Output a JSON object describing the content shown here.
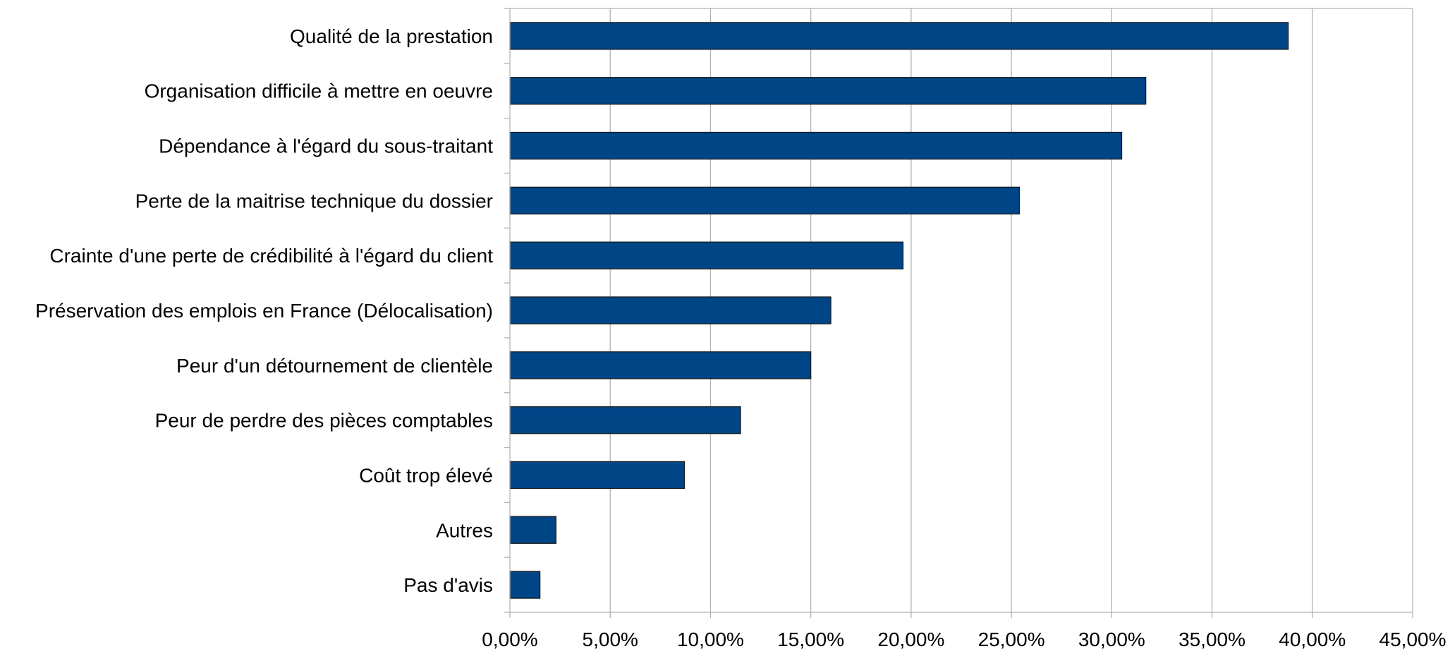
{
  "chart_data": {
    "type": "bar",
    "orientation": "horizontal",
    "title": "",
    "xlabel": "",
    "ylabel": "",
    "categories": [
      "Qualité de la prestation",
      "Organisation difficile à mettre en oeuvre",
      "Dépendance à l'égard du sous-traitant",
      "Perte de la maitrise technique du dossier",
      "Crainte d'une perte de crédibilité à l'égard du client",
      "Préservation des emplois en France (Délocalisation)",
      "Peur d'un détournement de clientèle",
      "Peur de perdre des pièces comptables",
      "Coût trop élevé",
      "Autres",
      "Pas d'avis"
    ],
    "values": [
      38.8,
      31.7,
      30.5,
      25.4,
      19.6,
      16.0,
      15.0,
      11.5,
      8.7,
      2.3,
      1.5
    ],
    "xlim": [
      0,
      45
    ],
    "xticks": [
      0,
      5,
      10,
      15,
      20,
      25,
      30,
      35,
      40,
      45
    ],
    "xtick_labels": [
      "0,00%",
      "5,00%",
      "10,00%",
      "15,00%",
      "20,00%",
      "25,00%",
      "30,00%",
      "35,00%",
      "40,00%",
      "45,00%"
    ],
    "grid": true,
    "legend": "none",
    "colors": {
      "bar": "#004586",
      "bar_edge": "#1a1a1a",
      "grid": "#b3b3b3"
    }
  }
}
